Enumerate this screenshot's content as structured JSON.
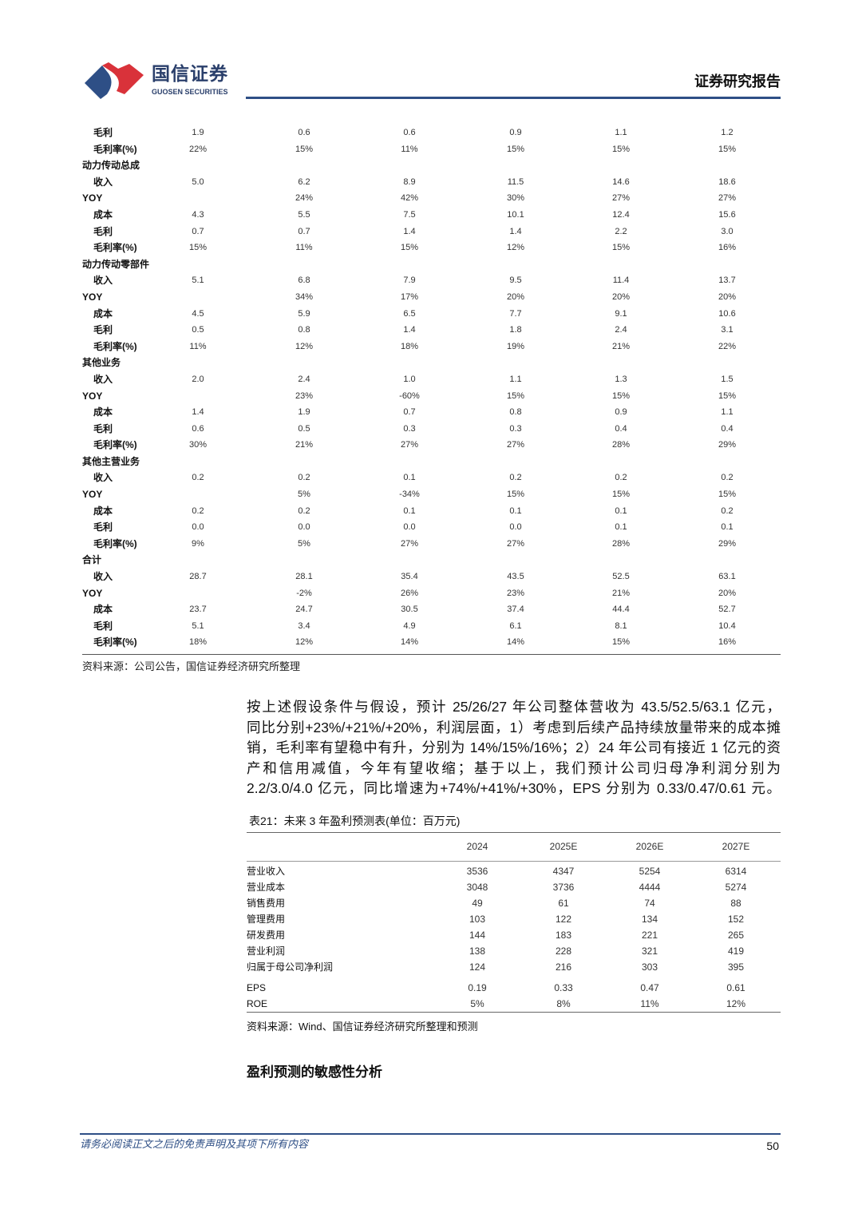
{
  "header": {
    "brand_cn": "国信证券",
    "brand_en": "GUOSEN SECURITIES",
    "report_type": "证券研究报告",
    "logo_colors": [
      "#2e4f86",
      "#d9323a"
    ]
  },
  "segment_table": {
    "rows": [
      {
        "type": "sub",
        "label": "毛利",
        "values": [
          "1.9",
          "0.6",
          "0.6",
          "0.9",
          "1.1",
          "1.2"
        ]
      },
      {
        "type": "sub",
        "label": "毛利率(%)",
        "values": [
          "22%",
          "15%",
          "11%",
          "15%",
          "15%",
          "15%"
        ]
      },
      {
        "type": "group",
        "label": "动力传动总成",
        "values": []
      },
      {
        "type": "sub",
        "label": "收入",
        "values": [
          "5.0",
          "6.2",
          "8.9",
          "11.5",
          "14.6",
          "18.6"
        ]
      },
      {
        "type": "yoy",
        "label": "YOY",
        "values": [
          "",
          "24%",
          "42%",
          "30%",
          "27%",
          "27%"
        ]
      },
      {
        "type": "sub",
        "label": "成本",
        "values": [
          "4.3",
          "5.5",
          "7.5",
          "10.1",
          "12.4",
          "15.6"
        ]
      },
      {
        "type": "sub",
        "label": "毛利",
        "values": [
          "0.7",
          "0.7",
          "1.4",
          "1.4",
          "2.2",
          "3.0"
        ]
      },
      {
        "type": "sub",
        "label": "毛利率(%)",
        "values": [
          "15%",
          "11%",
          "15%",
          "12%",
          "15%",
          "16%"
        ]
      },
      {
        "type": "group",
        "label": "动力传动零部件",
        "values": []
      },
      {
        "type": "sub",
        "label": "收入",
        "values": [
          "5.1",
          "6.8",
          "7.9",
          "9.5",
          "11.4",
          "13.7"
        ]
      },
      {
        "type": "yoy",
        "label": "YOY",
        "values": [
          "",
          "34%",
          "17%",
          "20%",
          "20%",
          "20%"
        ]
      },
      {
        "type": "sub",
        "label": "成本",
        "values": [
          "4.5",
          "5.9",
          "6.5",
          "7.7",
          "9.1",
          "10.6"
        ]
      },
      {
        "type": "sub",
        "label": "毛利",
        "values": [
          "0.5",
          "0.8",
          "1.4",
          "1.8",
          "2.4",
          "3.1"
        ]
      },
      {
        "type": "sub",
        "label": "毛利率(%)",
        "values": [
          "11%",
          "12%",
          "18%",
          "19%",
          "21%",
          "22%"
        ]
      },
      {
        "type": "group",
        "label": "其他业务",
        "values": []
      },
      {
        "type": "sub",
        "label": "收入",
        "values": [
          "2.0",
          "2.4",
          "1.0",
          "1.1",
          "1.3",
          "1.5"
        ]
      },
      {
        "type": "yoy",
        "label": "YOY",
        "values": [
          "",
          "23%",
          "-60%",
          "15%",
          "15%",
          "15%"
        ]
      },
      {
        "type": "sub",
        "label": "成本",
        "values": [
          "1.4",
          "1.9",
          "0.7",
          "0.8",
          "0.9",
          "1.1"
        ]
      },
      {
        "type": "sub",
        "label": "毛利",
        "values": [
          "0.6",
          "0.5",
          "0.3",
          "0.3",
          "0.4",
          "0.4"
        ]
      },
      {
        "type": "sub",
        "label": "毛利率(%)",
        "values": [
          "30%",
          "21%",
          "27%",
          "27%",
          "28%",
          "29%"
        ]
      },
      {
        "type": "group",
        "label": "其他主营业务",
        "values": []
      },
      {
        "type": "sub",
        "label": "收入",
        "values": [
          "0.2",
          "0.2",
          "0.1",
          "0.2",
          "0.2",
          "0.2"
        ]
      },
      {
        "type": "yoy",
        "label": "YOY",
        "values": [
          "",
          "5%",
          "-34%",
          "15%",
          "15%",
          "15%"
        ]
      },
      {
        "type": "sub",
        "label": "成本",
        "values": [
          "0.2",
          "0.2",
          "0.1",
          "0.1",
          "0.1",
          "0.2"
        ]
      },
      {
        "type": "sub",
        "label": "毛利",
        "values": [
          "0.0",
          "0.0",
          "0.0",
          "0.0",
          "0.1",
          "0.1"
        ]
      },
      {
        "type": "sub",
        "label": "毛利率(%)",
        "values": [
          "9%",
          "5%",
          "27%",
          "27%",
          "28%",
          "29%"
        ]
      },
      {
        "type": "group",
        "label": "合计",
        "values": []
      },
      {
        "type": "sub",
        "label": "收入",
        "values": [
          "28.7",
          "28.1",
          "35.4",
          "43.5",
          "52.5",
          "63.1"
        ]
      },
      {
        "type": "yoy",
        "label": "YOY",
        "values": [
          "",
          "-2%",
          "26%",
          "23%",
          "21%",
          "20%"
        ]
      },
      {
        "type": "sub",
        "label": "成本",
        "values": [
          "23.7",
          "24.7",
          "30.5",
          "37.4",
          "44.4",
          "52.7"
        ]
      },
      {
        "type": "sub",
        "label": "毛利",
        "values": [
          "5.1",
          "3.4",
          "4.9",
          "6.1",
          "8.1",
          "10.4"
        ]
      },
      {
        "type": "sub",
        "label": "毛利率(%)",
        "values": [
          "18%",
          "12%",
          "14%",
          "14%",
          "15%",
          "16%"
        ]
      }
    ],
    "source": "资料来源：公司公告，国信证券经济研究所整理"
  },
  "paragraph": {
    "lines": [
      "按上述假设条件与假设，预计 25/26/27 年公司整体营收为 43.5/52.5/63.1 亿元，",
      "同比分别+23%/+21%/+20%，利润层面，1）考虑到后续产品持续放量带来的成本摊",
      "销，毛利率有望稳中有升，分别为 14%/15%/16%；2）24 年公司有接近 1 亿元的资",
      "产和信用减值，今年有望收缩；基于以上，我们预计公司归母净利润分别为",
      "2.2/3.0/4.0 亿元，同比增速为+74%/+41%/+30%，EPS 分别为 0.33/0.47/0.61 元。"
    ]
  },
  "forecast_table": {
    "caption": "表21：未来 3 年盈利预测表(单位：百万元)",
    "columns": [
      "",
      "2024",
      "2025E",
      "2026E",
      "2027E"
    ],
    "rows": [
      {
        "label": "营业收入",
        "values": [
          "3536",
          "4347",
          "5254",
          "6314"
        ]
      },
      {
        "label": "营业成本",
        "values": [
          "3048",
          "3736",
          "4444",
          "5274"
        ]
      },
      {
        "label": "销售费用",
        "values": [
          "49",
          "61",
          "74",
          "88"
        ]
      },
      {
        "label": "管理费用",
        "values": [
          "103",
          "122",
          "134",
          "152"
        ]
      },
      {
        "label": "研发费用",
        "values": [
          "144",
          "183",
          "221",
          "265"
        ]
      },
      {
        "label": "营业利润",
        "values": [
          "138",
          "228",
          "321",
          "419"
        ]
      },
      {
        "label": "归属于母公司净利润",
        "values": [
          "124",
          "216",
          "303",
          "395"
        ]
      },
      {
        "label": "EPS",
        "values": [
          "0.19",
          "0.33",
          "0.47",
          "0.61"
        ]
      },
      {
        "label": "ROE",
        "values": [
          "5%",
          "8%",
          "11%",
          "12%"
        ]
      }
    ],
    "source": "资料来源：Wind、国信证券经济研究所整理和预测"
  },
  "section_heading": "盈利预测的敏感性分析",
  "footer": {
    "disclaimer": "请务必阅读正文之后的免责声明及其项下所有内容",
    "page_number": "50"
  }
}
